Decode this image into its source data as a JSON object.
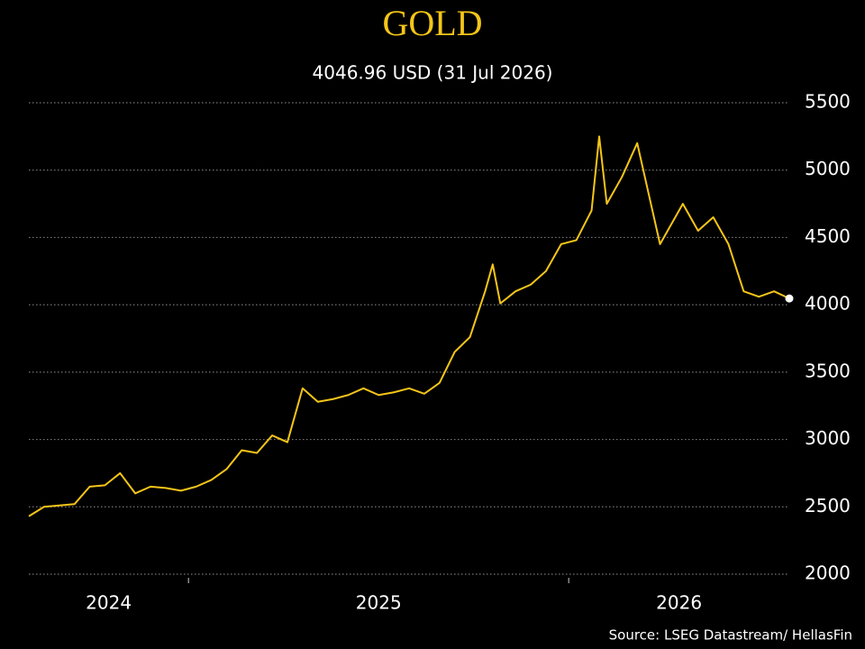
{
  "chart_data": {
    "type": "line",
    "title": "GOLD",
    "subtitle": "4046.96 USD (31 Jul 2026)",
    "source": "Source: LSEG Datastream/ HellasFin",
    "x": [
      2024.58,
      2024.62,
      2024.66,
      2024.7,
      2024.74,
      2024.78,
      2024.82,
      2024.86,
      2024.9,
      2024.94,
      2024.98,
      2025.02,
      2025.06,
      2025.1,
      2025.14,
      2025.18,
      2025.22,
      2025.26,
      2025.3,
      2025.34,
      2025.38,
      2025.42,
      2025.46,
      2025.5,
      2025.54,
      2025.58,
      2025.62,
      2025.66,
      2025.7,
      2025.74,
      2025.78,
      2025.8,
      2025.82,
      2025.86,
      2025.9,
      2025.94,
      2025.98,
      2026.02,
      2026.06,
      2026.08,
      2026.1,
      2026.14,
      2026.18,
      2026.22,
      2026.24,
      2026.26,
      2026.3,
      2026.34,
      2026.38,
      2026.42,
      2026.46,
      2026.5,
      2026.54,
      2026.58
    ],
    "series": [
      {
        "name": "Gold",
        "color": "#f5c518",
        "values": [
          2430,
          2500,
          2510,
          2520,
          2650,
          2660,
          2750,
          2600,
          2650,
          2640,
          2620,
          2650,
          2700,
          2780,
          2920,
          2900,
          3030,
          2980,
          3380,
          3280,
          3300,
          3330,
          3380,
          3330,
          3350,
          3380,
          3340,
          3420,
          3650,
          3760,
          4100,
          4300,
          4010,
          4100,
          4150,
          4250,
          4450,
          4480,
          4700,
          5250,
          4750,
          4950,
          5200,
          4700,
          4450,
          4550,
          4750,
          4550,
          4650,
          4450,
          4100,
          4060,
          4100,
          4046.96
        ]
      }
    ],
    "year_labels": [
      "2024",
      "2025",
      "2026"
    ],
    "xlim": [
      2024.58,
      2026.58
    ],
    "xticks": [
      2025,
      2026
    ],
    "ylim": [
      2000,
      5500
    ],
    "yticks": [
      2000,
      2500,
      3000,
      3500,
      4000,
      4500,
      5000,
      5500
    ],
    "grid": true
  }
}
